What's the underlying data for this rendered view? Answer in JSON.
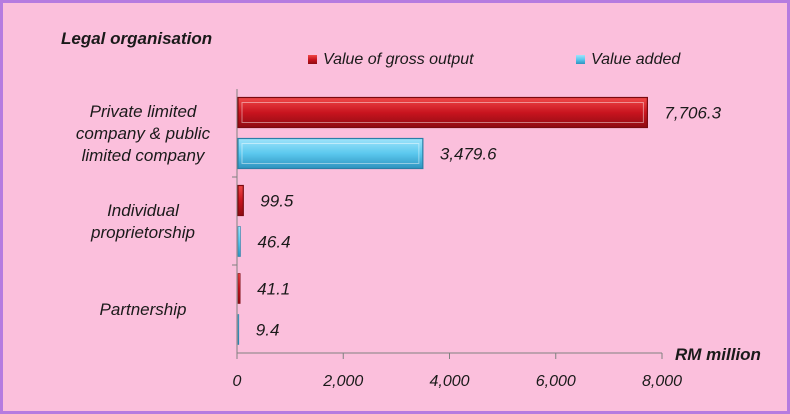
{
  "colors": {
    "background": "#fbbfdc",
    "border": "#b57be0",
    "gross_output": "#c9141f",
    "value_added": "#5bc8ee",
    "axis": "#808080"
  },
  "chart_data": {
    "type": "bar",
    "orientation": "horizontal",
    "title": "Legal organisation",
    "xlabel": "RM million",
    "ylabel": "",
    "xlim": [
      0,
      8000
    ],
    "xticks": [
      0,
      2000,
      4000,
      6000,
      8000
    ],
    "xtick_labels": [
      "0",
      "2,000",
      "4,000",
      "6,000",
      "8,000"
    ],
    "grid": false,
    "legend_position": "top",
    "categories": [
      [
        "Private limited",
        "company & public",
        "limited company"
      ],
      [
        "Individual",
        "proprietorship"
      ],
      [
        "Partnership"
      ]
    ],
    "series": [
      {
        "name": "Value of gross output",
        "color": "#c9141f",
        "values": [
          7706.3,
          99.5,
          41.1
        ],
        "labels": [
          "7,706.3",
          "99.5",
          "41.1"
        ]
      },
      {
        "name": "Value added",
        "color": "#5bc8ee",
        "values": [
          3479.6,
          46.4,
          9.4
        ],
        "labels": [
          "3,479.6",
          "46.4",
          "9.4"
        ]
      }
    ]
  }
}
